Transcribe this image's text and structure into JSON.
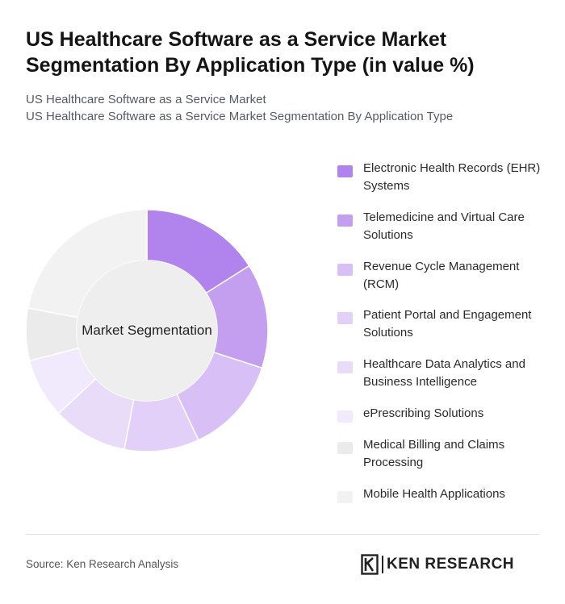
{
  "title": "US Healthcare Software as a Service Market Segmentation By Application Type (in value %)",
  "subtitle_line1": "US Healthcare Software as a Service Market",
  "subtitle_line2": "US Healthcare Software as a Service Market Segmentation By Application Type",
  "source": "Source: Ken Research Analysis",
  "brand": {
    "name": "KEN RESEARCH",
    "logo_icon": "ken-research-logo-icon"
  },
  "chart_data": {
    "type": "pie",
    "center_label": "Market Segmentation",
    "categories": [
      "Electronic Health Records (EHR) Systems",
      "Telemedicine and Virtual Care Solutions",
      "Revenue Cycle Management (RCM)",
      "Patient Portal and Engagement Solutions",
      "Healthcare Data Analytics and Business Intelligence",
      "ePrescribing Solutions",
      "Medical Billing and Claims Processing",
      "Mobile Health Applications"
    ],
    "values": [
      16,
      14,
      13,
      10,
      10,
      8,
      7,
      22
    ],
    "colors": [
      "#b084ec",
      "#c49ff0",
      "#d8c0f6",
      "#e2d0f8",
      "#e9dcf9",
      "#f1e9fc",
      "#ebebeb",
      "#f2f2f2"
    ],
    "legend_position": "right"
  }
}
